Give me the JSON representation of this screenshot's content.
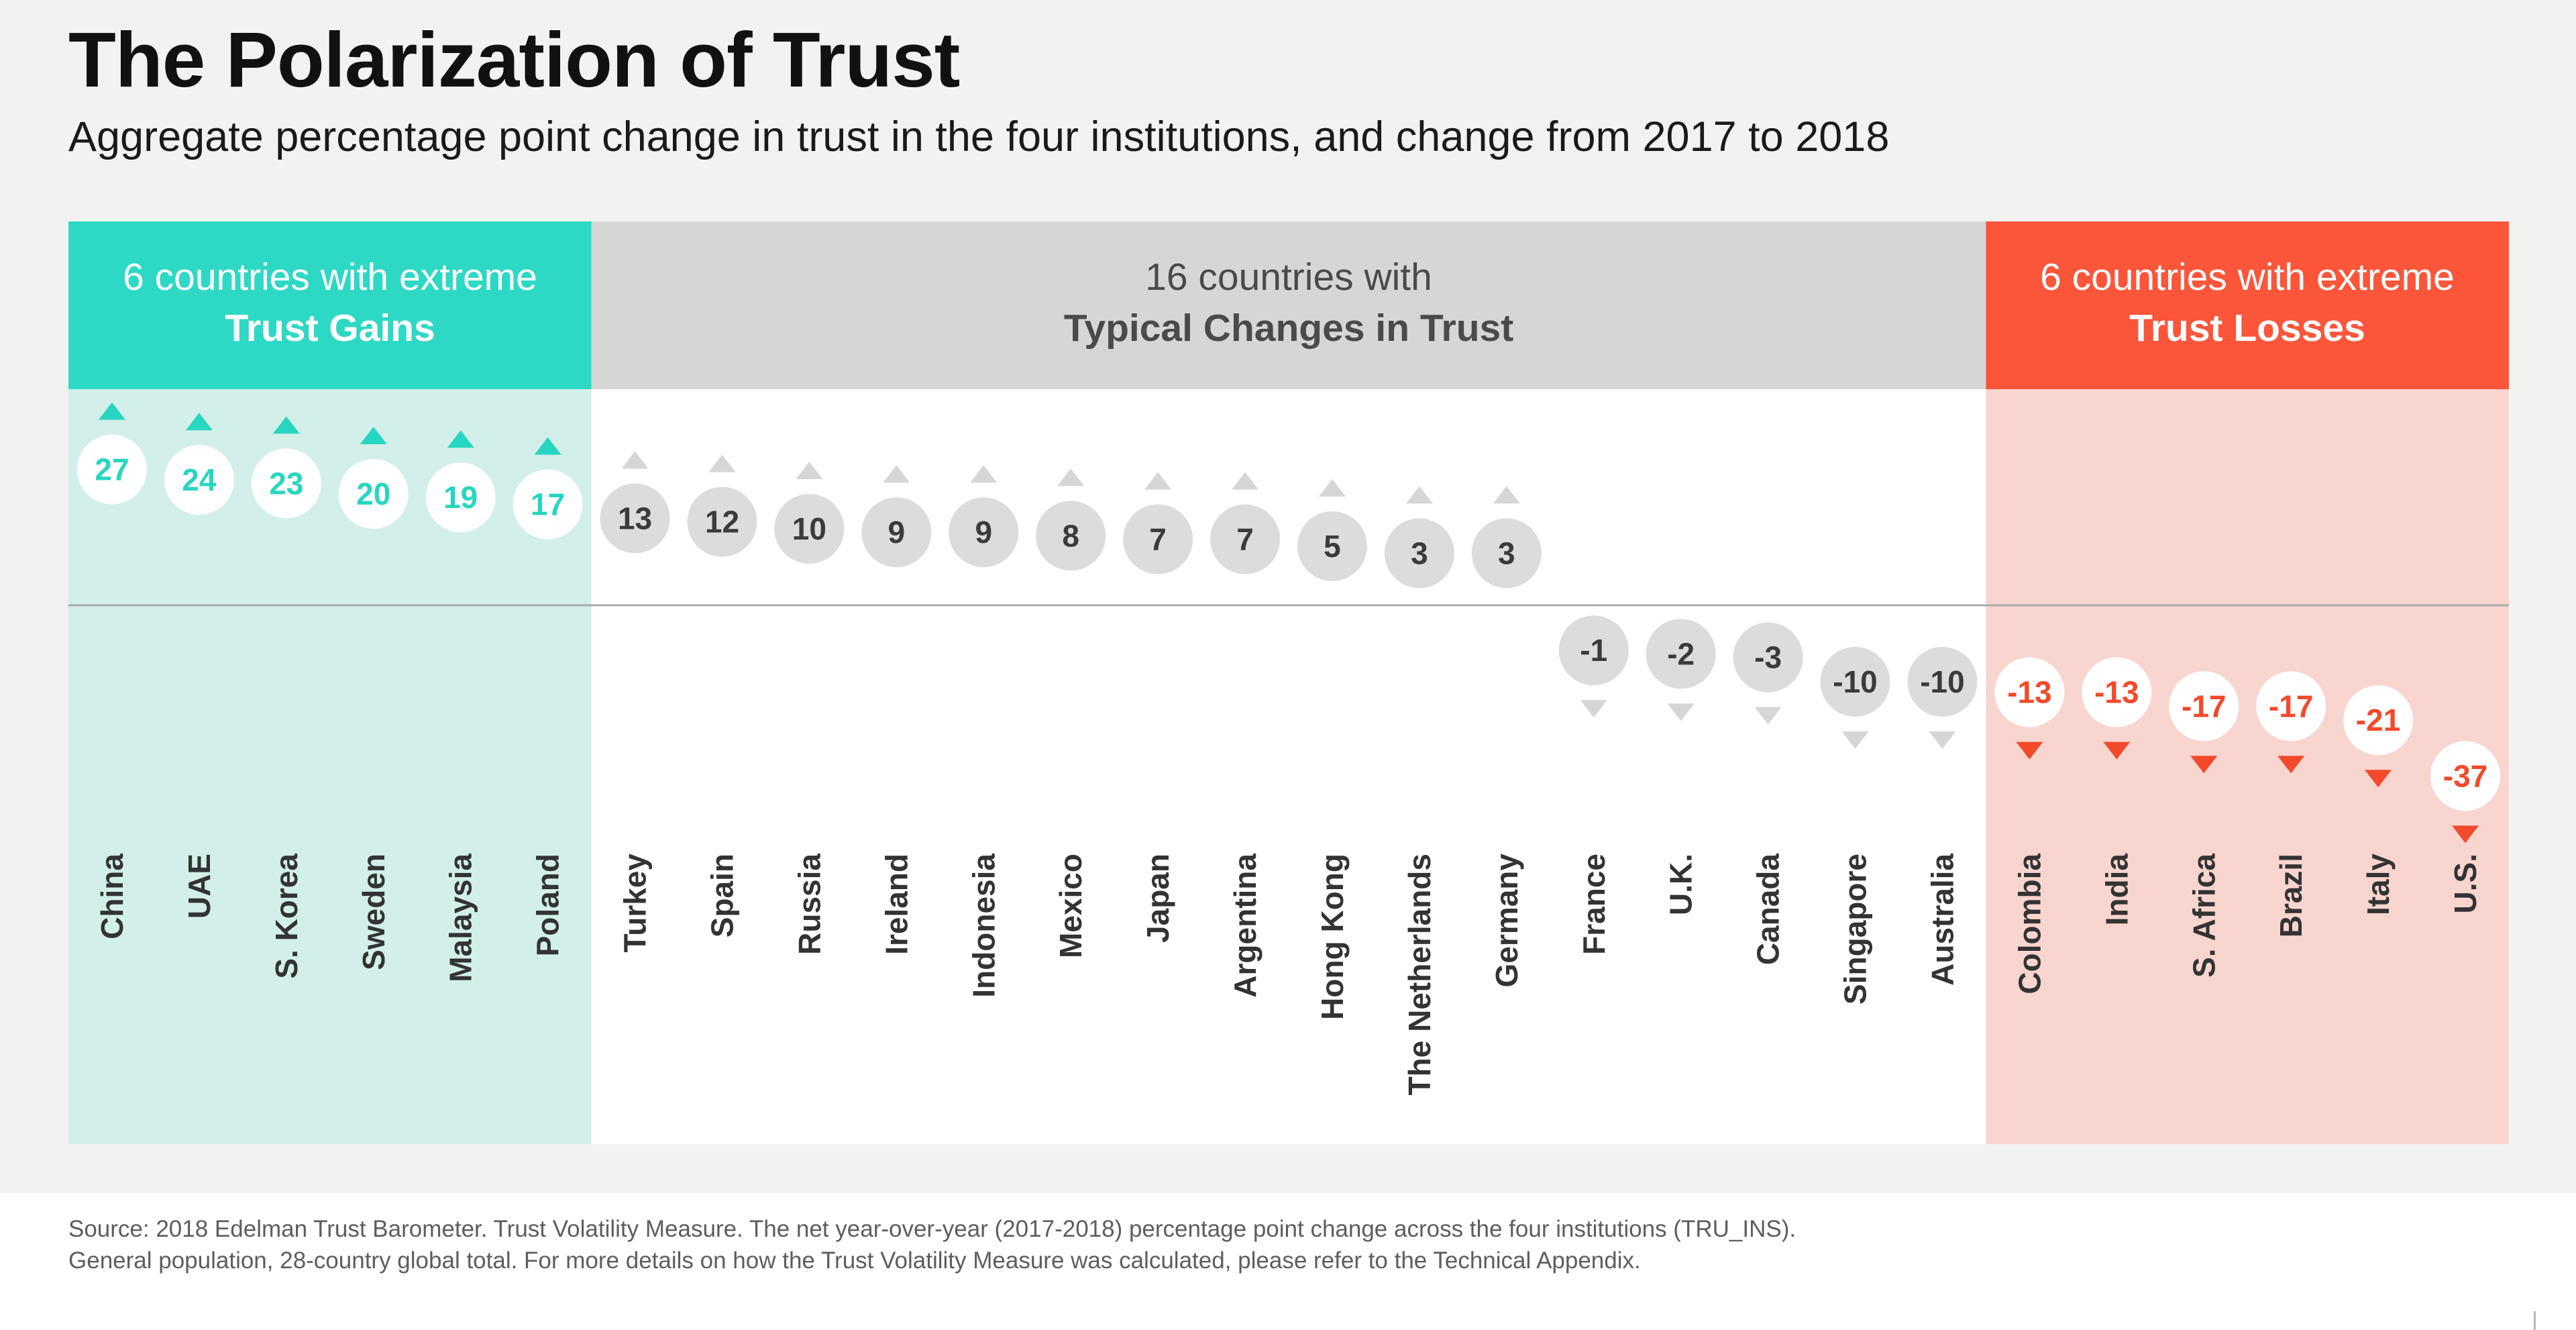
{
  "title": "The Polarization of Trust",
  "subtitle": "Aggregate percentage point change in trust in the four institutions, and change from 2017 to 2018",
  "groups": [
    {
      "line1": "6 countries with extreme",
      "line2": "Trust Gains"
    },
    {
      "line1": "16 countries with",
      "line2": "Typical Changes in Trust"
    },
    {
      "line1": "6 countries with extreme",
      "line2": "Trust Losses"
    }
  ],
  "colors": {
    "gain_header": "#2dd9c4",
    "gain_band": "#d3efe9",
    "gain_value": "#27d6c0",
    "neutral_header": "#d6d6d6",
    "neutral_circle": "#dcdcdc",
    "neutral_text": "#3b3b3b",
    "loss_header": "#fb553a",
    "loss_band": "#f9d5cf",
    "loss_value": "#f24a2b",
    "baseline": "#aaaaaa"
  },
  "chart_data": {
    "type": "scatter",
    "title": "The Polarization of Trust",
    "subtitle": "Aggregate percentage point change in trust in the four institutions, and change from 2017 to 2018",
    "categories": [
      "China",
      "UAE",
      "S. Korea",
      "Sweden",
      "Malaysia",
      "Poland",
      "Turkey",
      "Spain",
      "Russia",
      "Ireland",
      "Indonesia",
      "Mexico",
      "Japan",
      "Argentina",
      "Hong Kong",
      "The Netherlands",
      "Germany",
      "France",
      "U.K.",
      "Canada",
      "Singapore",
      "Australia",
      "Colombia",
      "India",
      "S. Africa",
      "Brazil",
      "Italy",
      "U.S."
    ],
    "values": [
      27,
      24,
      23,
      20,
      19,
      17,
      13,
      12,
      10,
      9,
      9,
      8,
      7,
      7,
      5,
      3,
      3,
      -1,
      -2,
      -3,
      -10,
      -10,
      -13,
      -13,
      -17,
      -17,
      -21,
      -37
    ],
    "groups": [
      "gain",
      "gain",
      "gain",
      "gain",
      "gain",
      "gain",
      "typical",
      "typical",
      "typical",
      "typical",
      "typical",
      "typical",
      "typical",
      "typical",
      "typical",
      "typical",
      "typical",
      "typical",
      "typical",
      "typical",
      "typical",
      "typical",
      "loss",
      "loss",
      "loss",
      "loss",
      "loss",
      "loss"
    ],
    "grid": false
  },
  "source": "Source: 2018 Edelman Trust Barometer. Trust Volatility Measure. The net year-over-year (2017-2018) percentage point change across the four institutions (TRU_INS). General population, 28-country global total. For more details on how the Trust Volatility Measure was calculated, please refer to the Technical Appendix."
}
